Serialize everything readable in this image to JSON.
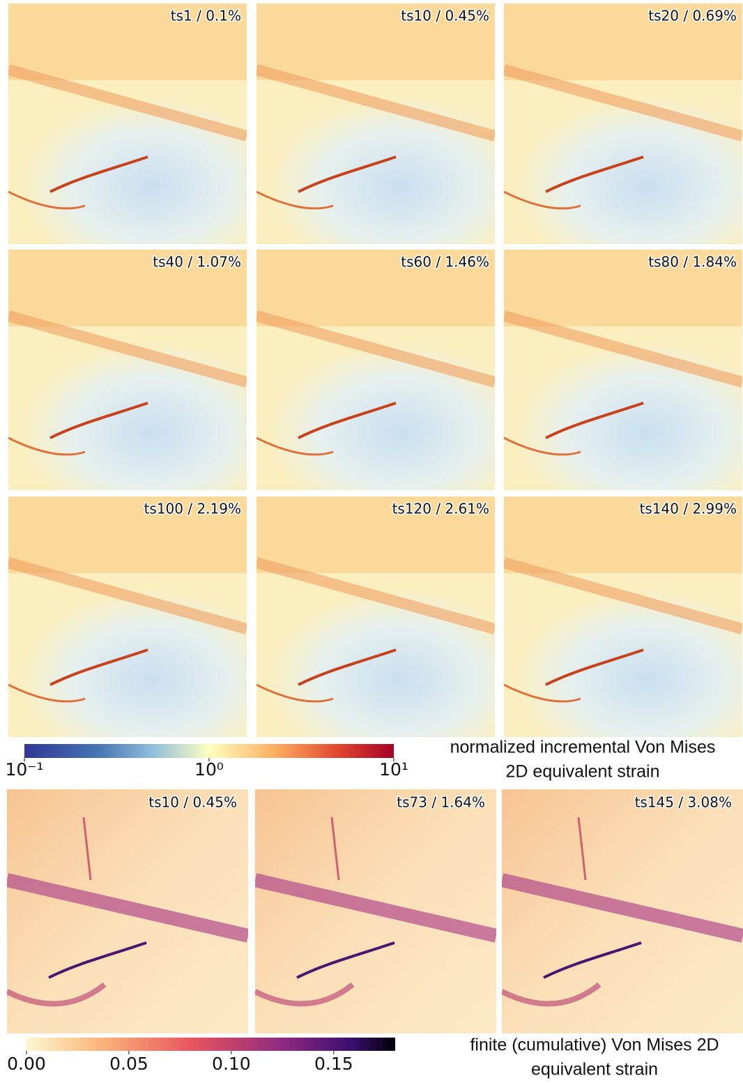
{
  "top_panels": [
    {
      "label": "ts1 / 0.1%"
    },
    {
      "label": "ts10 / 0.45%"
    },
    {
      "label": "ts20 / 0.69%"
    },
    {
      "label": "ts40 / 1.07%"
    },
    {
      "label": "ts60 / 1.46%"
    },
    {
      "label": "ts80 / 1.84%"
    },
    {
      "label": "ts100 / 2.19%"
    },
    {
      "label": "ts120 / 2.61%"
    },
    {
      "label": "ts140 / 2.99%"
    }
  ],
  "colorbar_incremental": {
    "scale": "log",
    "lim": [
      0.1,
      10
    ],
    "ticks": [
      {
        "value": 0.1,
        "label": "10⁻¹"
      },
      {
        "value": 1,
        "label": "10⁰"
      },
      {
        "value": 10,
        "label": "10¹"
      }
    ],
    "title": [
      "normalized incremental Von Mises",
      "2D equivalent strain"
    ]
  },
  "bottom_panels": [
    {
      "label": "ts10 / 0.45%"
    },
    {
      "label": "ts73 / 1.64%"
    },
    {
      "label": "ts145 / 3.08%"
    }
  ],
  "colorbar_finite": {
    "scale": "linear",
    "lim": [
      0,
      0.18
    ],
    "ticks": [
      {
        "value": 0,
        "label": "0.00"
      },
      {
        "value": 0.05,
        "label": "0.05"
      },
      {
        "value": 0.1,
        "label": "0.10"
      },
      {
        "value": 0.15,
        "label": "0.15"
      }
    ],
    "title": [
      "finite (cumulative) Von Mises 2D",
      "equivalent strain"
    ]
  }
}
